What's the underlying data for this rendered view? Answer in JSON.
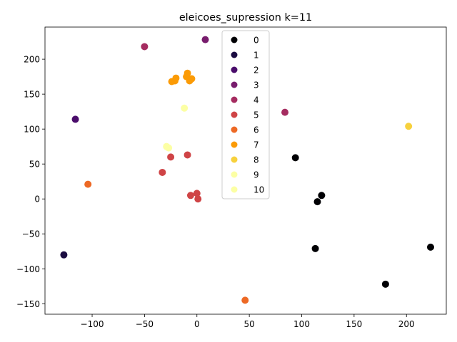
{
  "chart_data": {
    "type": "scatter",
    "title": "eleicoes_supression k=11",
    "xlabel": "",
    "ylabel": "",
    "xlim": [
      -145,
      238
    ],
    "ylim": [
      -165,
      246
    ],
    "xticks": [
      -100,
      -50,
      0,
      50,
      100,
      150,
      200
    ],
    "xtick_labels": [
      "−100",
      "−50",
      "0",
      "50",
      "100",
      "150",
      "200"
    ],
    "yticks": [
      -150,
      -100,
      -50,
      0,
      50,
      100,
      150,
      200
    ],
    "ytick_labels": [
      "−150",
      "−100",
      "−50",
      "0",
      "50",
      "100",
      "150",
      "200"
    ],
    "grid": false,
    "legend_position": "top-center",
    "series": [
      {
        "name": "0",
        "color": "#000004",
        "points": [
          [
            94,
            59
          ],
          [
            119,
            5
          ],
          [
            115,
            -4
          ],
          [
            113,
            -71
          ],
          [
            180,
            -122
          ],
          [
            223,
            -69
          ]
        ]
      },
      {
        "name": "1",
        "color": "#1b0c41",
        "points": [
          [
            -127,
            -80
          ]
        ]
      },
      {
        "name": "2",
        "color": "#4a0c6b",
        "points": [
          [
            -116,
            114
          ]
        ]
      },
      {
        "name": "3",
        "color": "#781c6d",
        "points": [
          [
            8,
            228
          ]
        ]
      },
      {
        "name": "4",
        "color": "#a52c60",
        "points": [
          [
            -50,
            218
          ],
          [
            84,
            124
          ]
        ]
      },
      {
        "name": "5",
        "color": "#cf4446",
        "points": [
          [
            -25,
            60
          ],
          [
            -33,
            38
          ],
          [
            -9,
            63
          ],
          [
            -6,
            5
          ],
          [
            0,
            8
          ],
          [
            1,
            0
          ]
        ]
      },
      {
        "name": "6",
        "color": "#ed6925",
        "points": [
          [
            -104,
            21
          ],
          [
            46,
            -145
          ]
        ]
      },
      {
        "name": "7",
        "color": "#fb9b06",
        "points": [
          [
            -24,
            168
          ],
          [
            -21,
            169
          ],
          [
            -20,
            173
          ],
          [
            -10,
            175
          ],
          [
            -9,
            180
          ],
          [
            -7,
            169
          ],
          [
            -5,
            172
          ]
        ]
      },
      {
        "name": "8",
        "color": "#f7d13d",
        "points": [
          [
            202,
            104
          ]
        ]
      },
      {
        "name": "9",
        "color": "#fcffa4",
        "points": [
          [
            -29,
            75
          ],
          [
            -27,
            73
          ]
        ]
      },
      {
        "name": "10",
        "color": "#fcffa4",
        "points": [
          [
            -12,
            130
          ]
        ]
      }
    ]
  }
}
